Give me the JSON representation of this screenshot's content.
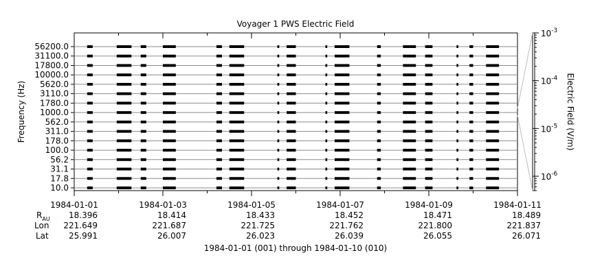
{
  "chart_data": {
    "type": "line",
    "title": "Voyager 1 PWS Electric Field",
    "ylabel": "Frequency (Hz)",
    "y2label": "Electric Field (V/m)",
    "xlabel": "1984-01-01 (001) through 1984-01-10 (010)",
    "x_ticks": [
      "1984-01-01",
      "1984-01-03",
      "1984-01-05",
      "1984-01-07",
      "1984-01-09",
      "1984-01-11"
    ],
    "xlim": [
      "1984-01-01",
      "1984-01-11"
    ],
    "channels": [
      "10.0",
      "17.8",
      "31.1",
      "56.2",
      "100.0",
      "178.0",
      "311.0",
      "562.0",
      "1000.0",
      "1780.0",
      "3110.0",
      "5620.0",
      "10000.0",
      "17800.0",
      "31100.0",
      "56200.0"
    ],
    "y2_scale": "log",
    "y2lim": [
      5e-07,
      0.001
    ],
    "y2_ticks": [
      {
        "base": "10",
        "exp": "-3",
        "value": 0.001
      },
      {
        "base": "10",
        "exp": "-4",
        "value": 0.0001
      },
      {
        "base": "10",
        "exp": "-5",
        "value": 1e-05
      },
      {
        "base": "10",
        "exp": "-6",
        "value": 1e-06
      }
    ],
    "data_segments": [
      {
        "start": "1984-01-01T07:00",
        "end": "1984-01-01T10:00"
      },
      {
        "start": "1984-01-01T23:00",
        "end": "1984-01-02T07:00"
      },
      {
        "start": "1984-01-02T12:00",
        "end": "1984-01-02T15:00"
      },
      {
        "start": "1984-01-03T00:00",
        "end": "1984-01-03T07:00"
      },
      {
        "start": "1984-01-04T05:00",
        "end": "1984-01-04T08:00"
      },
      {
        "start": "1984-01-04T12:00",
        "end": "1984-01-04T20:00"
      },
      {
        "start": "1984-01-05T14:00",
        "end": "1984-01-05T15:00"
      },
      {
        "start": "1984-01-05T19:00",
        "end": "1984-01-06T00:00"
      },
      {
        "start": "1984-01-06T16:00",
        "end": "1984-01-06T17:00"
      },
      {
        "start": "1984-01-06T21:00",
        "end": "1984-01-07T05:00"
      },
      {
        "start": "1984-01-07T20:00",
        "end": "1984-01-07T22:00"
      },
      {
        "start": "1984-01-08T10:00",
        "end": "1984-01-08T17:00"
      },
      {
        "start": "1984-01-08T22:00",
        "end": "1984-01-09T02:00"
      },
      {
        "start": "1984-01-09T15:00",
        "end": "1984-01-09T16:00"
      },
      {
        "start": "1984-01-09T22:00",
        "end": "1984-01-10T00:00"
      },
      {
        "start": "1984-01-10T07:00",
        "end": "1984-01-10T14:00"
      }
    ]
  },
  "ephemeris": {
    "labels": {
      "rau_main": "R",
      "rau_sub": "AU",
      "lon": "Lon",
      "lat": "Lat"
    },
    "columns": [
      {
        "rau": "18.396",
        "lon": "221.649",
        "lat": "25.991"
      },
      {
        "rau": "18.414",
        "lon": "221.687",
        "lat": "26.007"
      },
      {
        "rau": "18.433",
        "lon": "221.725",
        "lat": "26.023"
      },
      {
        "rau": "18.452",
        "lon": "221.762",
        "lat": "26.039"
      },
      {
        "rau": "18.471",
        "lon": "221.800",
        "lat": "26.055"
      },
      {
        "rau": "18.489",
        "lon": "221.837",
        "lat": "26.071"
      }
    ]
  }
}
